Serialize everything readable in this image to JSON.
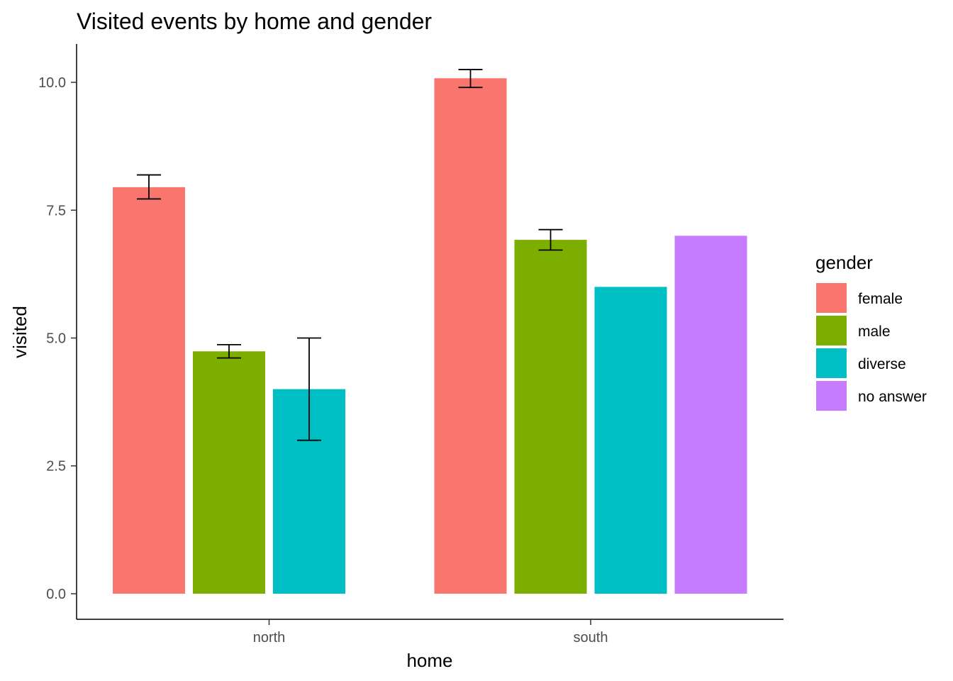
{
  "chart_data": {
    "type": "bar",
    "title": "Visited events by home and gender",
    "xlabel": "home",
    "ylabel": "visited",
    "categories": [
      "north",
      "south"
    ],
    "ylim": [
      -0.5,
      10.75
    ],
    "yticks": [
      0.0,
      2.5,
      5.0,
      7.5,
      10.0
    ],
    "ytick_labels": [
      "0.0",
      "2.5",
      "5.0",
      "7.5",
      "10.0"
    ],
    "grid": false,
    "legend": {
      "title": "gender",
      "placement": "right"
    },
    "series": [
      {
        "name": "female",
        "color": "#F8766D",
        "values": [
          7.95,
          10.08
        ],
        "error_low": [
          7.72,
          9.9
        ],
        "error_high": [
          8.19,
          10.25
        ]
      },
      {
        "name": "male",
        "color": "#7CAE00",
        "values": [
          4.74,
          6.92
        ],
        "error_low": [
          4.61,
          6.72
        ],
        "error_high": [
          4.87,
          7.12
        ]
      },
      {
        "name": "diverse",
        "color": "#00BFC4",
        "values": [
          4.0,
          6.0
        ],
        "error_low": [
          3.0,
          null
        ],
        "error_high": [
          5.0,
          null
        ]
      },
      {
        "name": "no answer",
        "color": "#C77CFF",
        "values": [
          null,
          7.0
        ],
        "error_low": [
          null,
          null
        ],
        "error_high": [
          null,
          null
        ]
      }
    ]
  }
}
